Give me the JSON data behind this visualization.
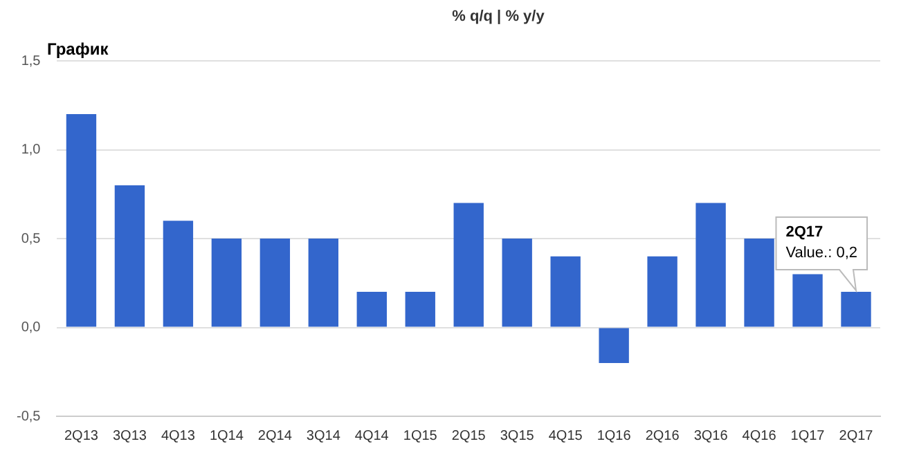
{
  "chart_data": {
    "type": "bar",
    "title": "График",
    "subtitle": "% q/q | % y/y",
    "categories": [
      "2Q13",
      "3Q13",
      "4Q13",
      "1Q14",
      "2Q14",
      "3Q14",
      "4Q14",
      "1Q15",
      "2Q15",
      "3Q15",
      "4Q15",
      "1Q16",
      "2Q16",
      "3Q16",
      "4Q16",
      "1Q17",
      "2Q17"
    ],
    "values": [
      1.2,
      0.8,
      0.6,
      0.5,
      0.5,
      0.5,
      0.2,
      0.2,
      0.7,
      0.5,
      0.4,
      -0.2,
      0.4,
      0.7,
      0.5,
      0.3,
      0.2
    ],
    "color": "#3366cc",
    "ylim": [
      -0.5,
      1.5
    ],
    "yticks": [
      {
        "value": -0.5,
        "label": "-0,5"
      },
      {
        "value": 0,
        "label": "0,0"
      },
      {
        "value": 0.5,
        "label": "0,5"
      },
      {
        "value": 1,
        "label": "1,0"
      },
      {
        "value": 1.5,
        "label": "1,5"
      }
    ],
    "grid": "y",
    "legend": false,
    "annotations": [
      {
        "text": "2Q17\nValue.: 0,2",
        "x": "2Q17",
        "y": 0.2
      }
    ]
  }
}
